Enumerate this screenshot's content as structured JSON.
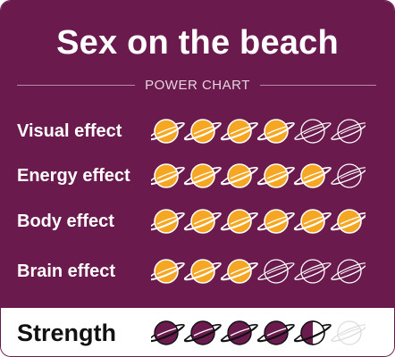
{
  "title": "Sex on the beach",
  "subtitle": "POWER CHART",
  "max_rating": 6,
  "colors": {
    "panel": "#6a1a4c",
    "planet_filled": "#f5a623",
    "planet_outline": "#ffffff",
    "strength_filled": "#6a1a4c",
    "strength_outline": "#111111",
    "strength_empty": "#dddddd"
  },
  "effects": [
    {
      "label": "Visual effect",
      "rating": 4
    },
    {
      "label": "Energy effect",
      "rating": 5
    },
    {
      "label": "Body effect",
      "rating": 6
    },
    {
      "label": "Brain effect",
      "rating": 3
    }
  ],
  "strength": {
    "label": "Strength",
    "rating": 4.5
  },
  "icon": "saturn-planet-icon"
}
